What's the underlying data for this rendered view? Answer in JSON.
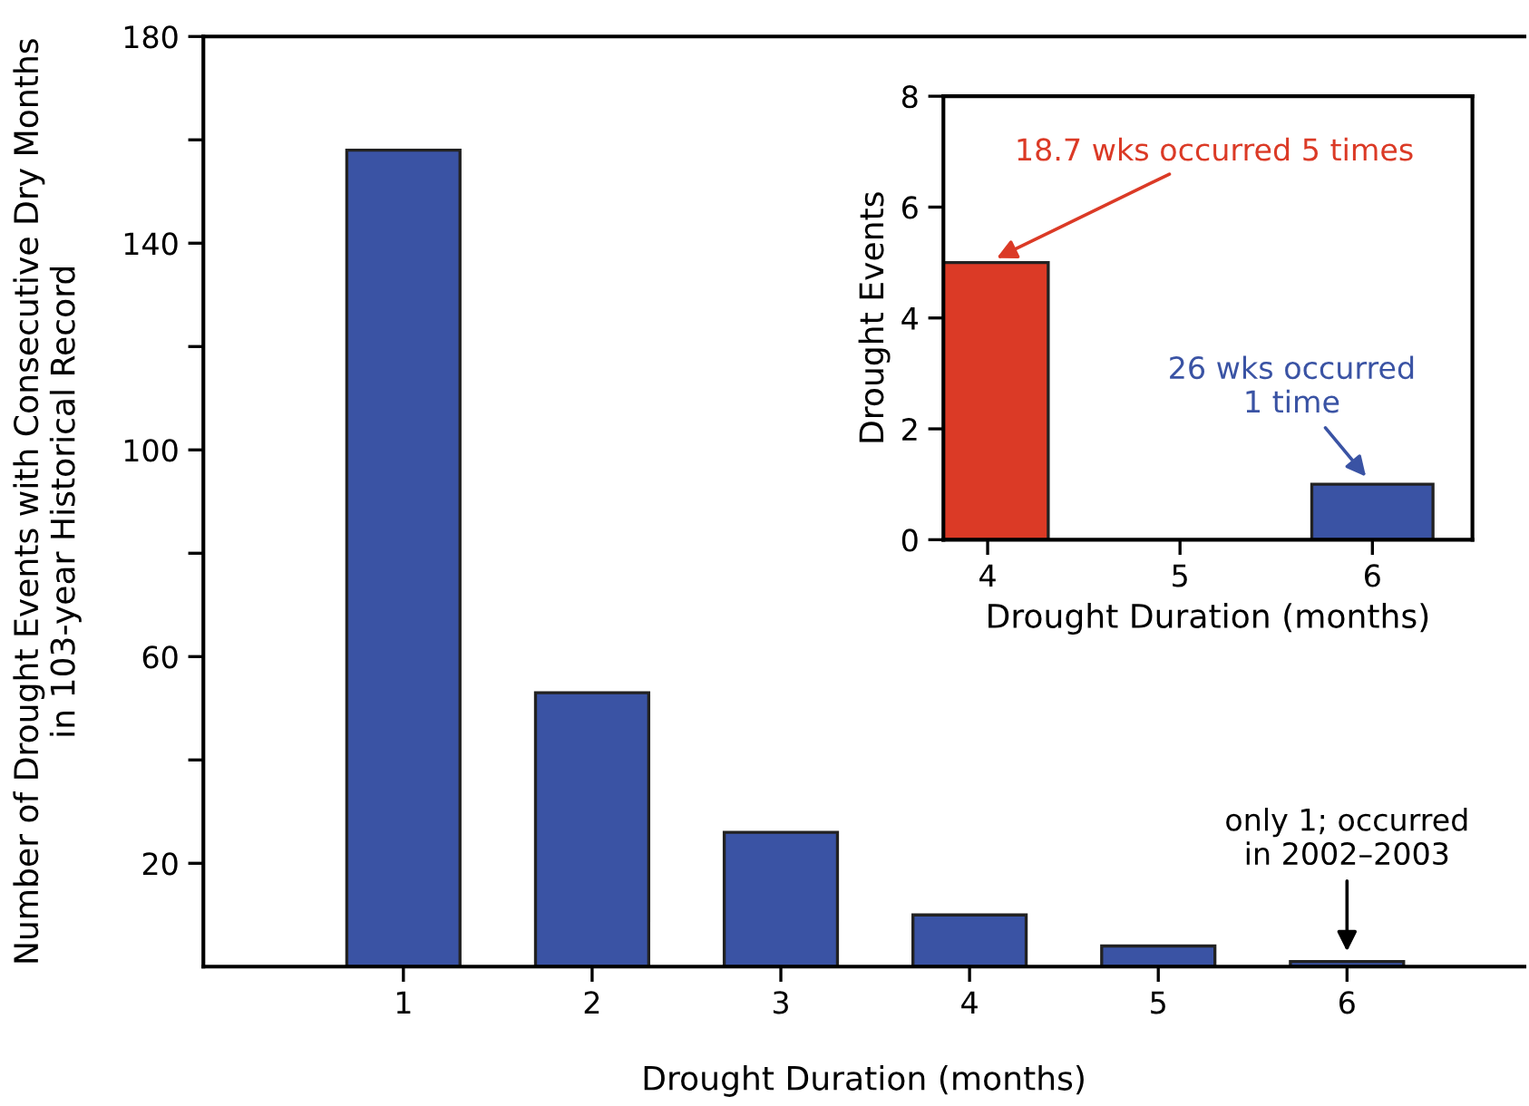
{
  "chart_data": [
    {
      "type": "bar",
      "categories": [
        "1",
        "2",
        "3",
        "4",
        "5",
        "6"
      ],
      "values": [
        158,
        53,
        26,
        10,
        4,
        1
      ],
      "color": "#3a53a4",
      "xlabel": "Drought Duration (months)",
      "ylabel": "Number of Drought Events with Consecutive Dry Months\nin 103-year Historical Record",
      "ylim": [
        0,
        180
      ],
      "yticks": [
        20,
        {
          "value": 40,
          "label": null
        },
        60,
        {
          "value": 80,
          "label": null
        },
        100,
        {
          "value": 120,
          "label": null
        },
        140,
        {
          "value": 160,
          "label": null
        },
        180
      ],
      "annotations": [
        {
          "text": "only 1; occurred\nin 2002–2003",
          "x": "6",
          "y": 1
        }
      ]
    },
    {
      "type": "bar",
      "categories": [
        "4",
        "5",
        "6"
      ],
      "values": [
        5,
        null,
        1
      ],
      "colors": [
        "#db3a26",
        null,
        "#3a53a4"
      ],
      "xlabel": "Drought Duration (months)",
      "ylabel": "Drought Events",
      "ylim": [
        0,
        8
      ],
      "yticks": [
        0,
        2,
        4,
        6,
        8
      ],
      "annotations": [
        {
          "text": "18.7 wks occurred 5 times",
          "x": "4",
          "y": 5
        },
        {
          "text": "26 wks occurred\n1 time",
          "x": "6",
          "y": 1
        }
      ]
    }
  ]
}
